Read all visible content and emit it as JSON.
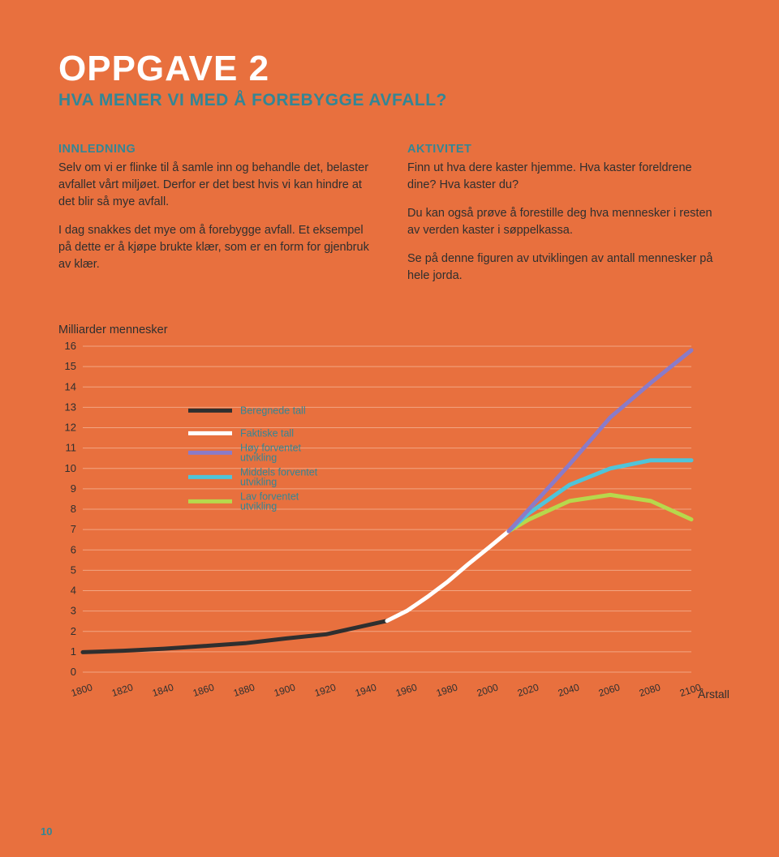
{
  "header": {
    "title": "OPPGAVE 2",
    "subtitle": "HVA MENER VI MED Å FOREBYGGE AVFALL?"
  },
  "left_column": {
    "heading": "INNLEDNING",
    "p1": "Selv om vi er flinke til å samle inn og behandle det, belaster avfallet vårt miljøet. Derfor er det best hvis vi kan hindre at det blir så mye avfall.",
    "p2": "I dag snakkes det mye om å forebygge avfall. Et eksempel på dette er å kjøpe brukte klær, som er en form for gjenbruk av klær."
  },
  "right_column": {
    "heading": "AKTIVITET",
    "p1": "Finn ut hva dere kaster hjemme. Hva kaster foreldrene dine? Hva kaster du?",
    "p2": "Du kan også prøve å forestille deg hva mennesker i resten av verden kaster i søppelkassa.",
    "p3": "Se på denne figuren av utviklingen av antall mennesker på hele jorda."
  },
  "chart": {
    "y_axis_title": "Milliarder mennesker",
    "x_axis_title": "Årstall",
    "type": "line",
    "background_color": "#e8703e",
    "gridline_color": "#f2a582",
    "axis_text_color": "#2f2f2f",
    "ylim": [
      0,
      16
    ],
    "ytick_step": 1,
    "xlim": [
      1800,
      2100
    ],
    "xtick_step": 20,
    "xticks": [
      1800,
      1820,
      1840,
      1860,
      1880,
      1900,
      1920,
      1940,
      1960,
      1980,
      2000,
      2020,
      2040,
      2060,
      2080,
      2100
    ],
    "legend": {
      "beregnede": {
        "label": "Beregnede tall",
        "color": "#2f2f2f",
        "stroke_width": 5
      },
      "faktiske": {
        "label": "Faktiske tall",
        "color": "#ffffff",
        "stroke_width": 5
      },
      "hoy": {
        "label_l1": "Høy forventet",
        "label_l2": "utvikling",
        "color": "#8a7bc8",
        "stroke_width": 5
      },
      "middels": {
        "label_l1": "Middels forventet",
        "label_l2": "utvikling",
        "color": "#4fc4d9",
        "stroke_width": 5
      },
      "lav": {
        "label_l1": "Lav forventet",
        "label_l2": "utvikling",
        "color": "#b7d84c",
        "stroke_width": 5
      }
    },
    "series": {
      "beregnede": {
        "color": "#2f2f2f",
        "stroke_width": 5,
        "points": [
          [
            1800,
            0.98
          ],
          [
            1820,
            1.05
          ],
          [
            1840,
            1.15
          ],
          [
            1860,
            1.28
          ],
          [
            1880,
            1.42
          ],
          [
            1900,
            1.65
          ],
          [
            1920,
            1.86
          ],
          [
            1940,
            2.3
          ],
          [
            1950,
            2.52
          ]
        ]
      },
      "faktiske": {
        "color": "#ffffff",
        "stroke_width": 5,
        "points": [
          [
            1950,
            2.52
          ],
          [
            1960,
            3.02
          ],
          [
            1970,
            3.7
          ],
          [
            1980,
            4.45
          ],
          [
            1990,
            5.3
          ],
          [
            2000,
            6.1
          ],
          [
            2010,
            6.92
          ]
        ]
      },
      "hoy": {
        "color": "#8a7bc8",
        "stroke_width": 5,
        "points": [
          [
            2010,
            6.92
          ],
          [
            2020,
            8.0
          ],
          [
            2040,
            10.2
          ],
          [
            2060,
            12.5
          ],
          [
            2080,
            14.2
          ],
          [
            2100,
            15.8
          ]
        ]
      },
      "middels": {
        "color": "#4fc4d9",
        "stroke_width": 5,
        "points": [
          [
            2010,
            6.92
          ],
          [
            2020,
            7.8
          ],
          [
            2040,
            9.2
          ],
          [
            2060,
            10.0
          ],
          [
            2080,
            10.4
          ],
          [
            2100,
            10.4
          ]
        ]
      },
      "lav": {
        "color": "#b7d84c",
        "stroke_width": 5,
        "points": [
          [
            2010,
            6.92
          ],
          [
            2020,
            7.5
          ],
          [
            2040,
            8.4
          ],
          [
            2060,
            8.7
          ],
          [
            2080,
            8.4
          ],
          [
            2100,
            7.5
          ]
        ]
      }
    }
  },
  "page_number": "10"
}
